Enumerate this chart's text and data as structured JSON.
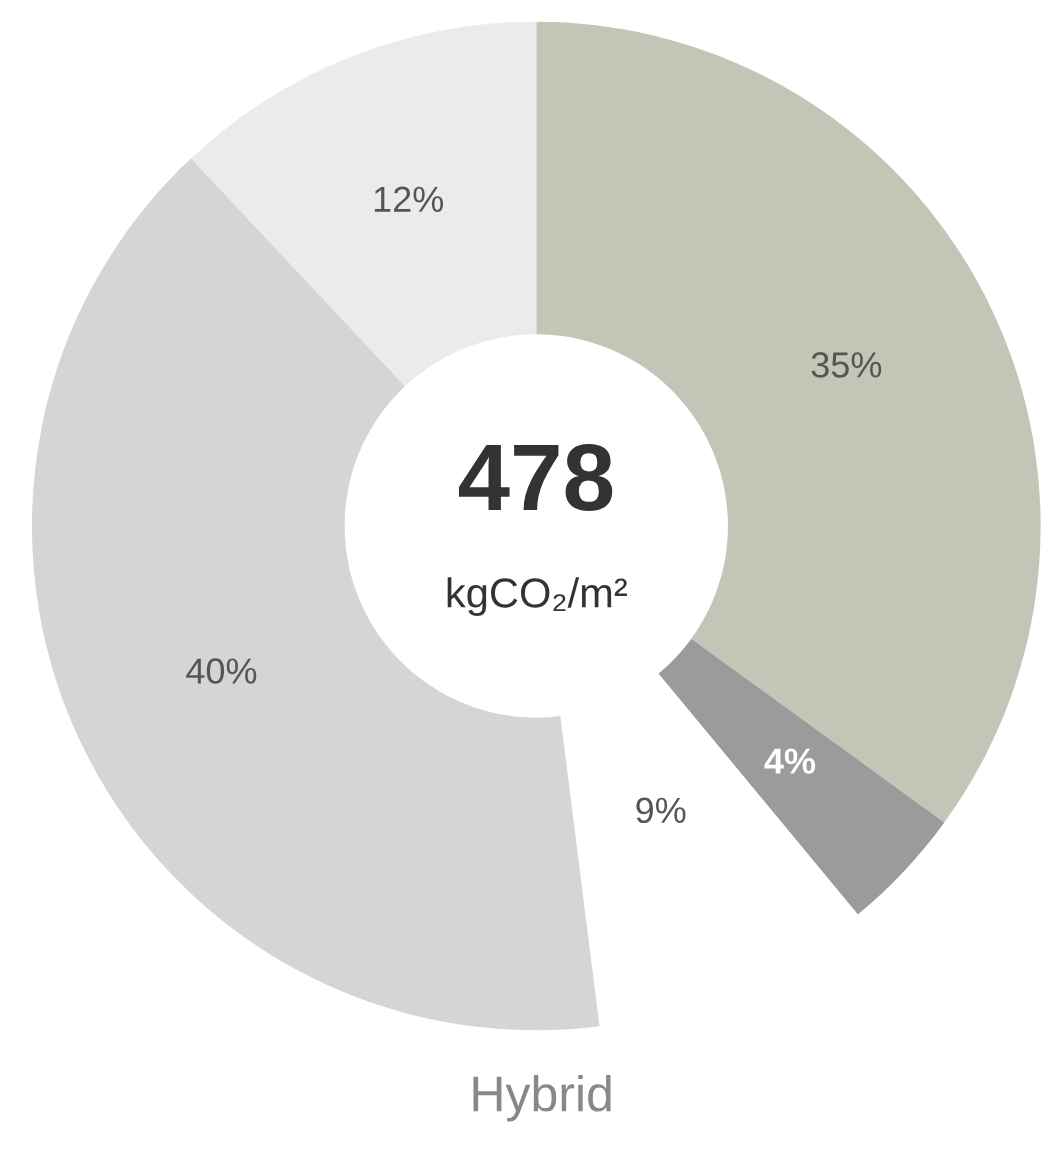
{
  "chart_data": {
    "type": "donut",
    "title": "Hybrid",
    "categories": [
      null,
      null,
      null,
      null,
      null
    ],
    "values": [
      35,
      4,
      9,
      40,
      12
    ],
    "colors": [
      "#c3c6b6",
      "#9b9b9b",
      "#ffffff",
      "#d5d5d5",
      "#ebebeb"
    ],
    "value_labels": [
      "35%",
      "4%",
      "9%",
      "40%",
      "12%"
    ],
    "annotations": [
      "478",
      "kgCO₂/m²"
    ]
  }
}
